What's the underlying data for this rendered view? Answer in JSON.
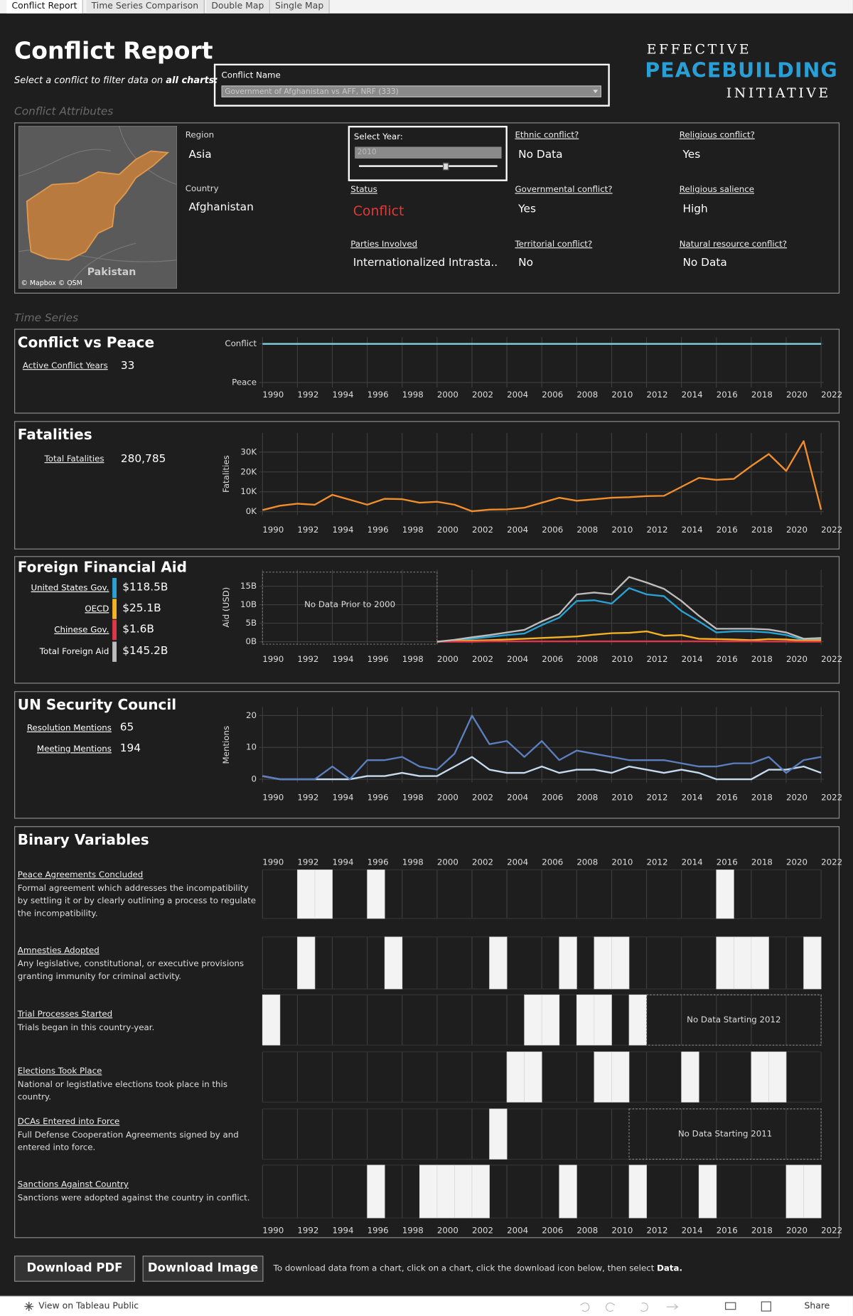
{
  "tabs": [
    "Conflict Report",
    "Time Series Comparison",
    "Double Map",
    "Single Map"
  ],
  "header": {
    "title": "Conflict Report",
    "subtitle": "Select a conflict to filter data on",
    "subtitle_emphasis": "all charts:",
    "filter_label": "Conflict Name",
    "filter_value": "Government of Afghanistan vs AFF, NRF (333)",
    "logo": [
      "EFFECTIVE",
      "PEACEBUILDING",
      "INITIATIVE"
    ]
  },
  "attributes": {
    "section_title": "Conflict Attributes",
    "map_label": "Pakistan",
    "map_credits": "© Mapbox © OSM",
    "region_label": "Region",
    "region": "Asia",
    "country_label": "Country",
    "country": "Afghanistan",
    "year_label": "Select Year:",
    "year": "2010",
    "fields": [
      {
        "label": "Ethnic conflict?",
        "value": "No Data"
      },
      {
        "label": "Religious conflict?",
        "value": "Yes"
      },
      {
        "label": "Status",
        "value": "Conflict"
      },
      {
        "label": "Governmental conflict?",
        "value": "Yes"
      },
      {
        "label": "Religious salience",
        "value": "High"
      },
      {
        "label": "Parties Involved",
        "value": "Internationalized Intrasta.."
      },
      {
        "label": "Territorial conflict?",
        "value": "No"
      },
      {
        "label": "Natural resource conflict?",
        "value": "No Data"
      }
    ]
  },
  "time_series_title": "Time Series",
  "chart_data": [
    {
      "type": "line",
      "title": "Conflict vs Peace",
      "stat_label": "Active Conflict Years",
      "stat_value": 33,
      "x": [
        1990,
        1991,
        1992,
        1993,
        1994,
        1995,
        1996,
        1997,
        1998,
        1999,
        2000,
        2001,
        2002,
        2003,
        2004,
        2005,
        2006,
        2007,
        2008,
        2009,
        2010,
        2011,
        2012,
        2013,
        2014,
        2015,
        2016,
        2017,
        2018,
        2019,
        2020,
        2021,
        2022
      ],
      "values": [
        1,
        1,
        1,
        1,
        1,
        1,
        1,
        1,
        1,
        1,
        1,
        1,
        1,
        1,
        1,
        1,
        1,
        1,
        1,
        1,
        1,
        1,
        1,
        1,
        1,
        1,
        1,
        1,
        1,
        1,
        1,
        1,
        1
      ],
      "color": "#7fd3df",
      "xlim": [
        1990,
        2022
      ],
      "xticks": [
        1990,
        1992,
        1994,
        1996,
        1998,
        2000,
        2002,
        2004,
        2006,
        2008,
        2010,
        2012,
        2014,
        2016,
        2018,
        2020,
        2022
      ],
      "ylim": [
        0,
        1
      ],
      "yticks": [
        {
          "value": 0,
          "label": "Peace"
        },
        {
          "value": 1,
          "label": "Conflict"
        }
      ],
      "grid": true
    },
    {
      "type": "line",
      "title": "Fatalities",
      "stat_label": "Total Fatalities",
      "stat_value": "280,785",
      "y_label": "Fatalities",
      "x": [
        1990,
        1991,
        1992,
        1993,
        1994,
        1995,
        1996,
        1997,
        1998,
        1999,
        2000,
        2001,
        2002,
        2003,
        2004,
        2005,
        2006,
        2007,
        2008,
        2009,
        2010,
        2011,
        2012,
        2013,
        2014,
        2015,
        2016,
        2017,
        2018,
        2019,
        2020,
        2021,
        2022
      ],
      "values": [
        800,
        3000,
        4000,
        3500,
        8500,
        6000,
        3500,
        6500,
        6300,
        4500,
        5000,
        3500,
        200,
        1000,
        1200,
        2000,
        4500,
        7000,
        5500,
        6200,
        7000,
        7300,
        7800,
        8000,
        12500,
        17000,
        16000,
        16500,
        23000,
        29000,
        20500,
        35500,
        1000
      ],
      "color": "#f28e2b",
      "xlim": [
        1990,
        2022
      ],
      "xticks": [
        1990,
        1992,
        1994,
        1996,
        1998,
        2000,
        2002,
        2004,
        2006,
        2008,
        2010,
        2012,
        2014,
        2016,
        2018,
        2020,
        2022
      ],
      "ylim": [
        0,
        38000
      ],
      "yticks": [
        {
          "value": 0,
          "label": "0K"
        },
        {
          "value": 10000,
          "label": "10K"
        },
        {
          "value": 20000,
          "label": "20K"
        },
        {
          "value": 30000,
          "label": "30K"
        }
      ],
      "grid": true
    },
    {
      "type": "line",
      "title": "Foreign Financial Aid",
      "y_label": "Aid (USD)",
      "annotation": "No Data Prior to 2000",
      "x": [
        2000,
        2001,
        2002,
        2003,
        2004,
        2005,
        2006,
        2007,
        2008,
        2009,
        2010,
        2011,
        2012,
        2013,
        2014,
        2015,
        2016,
        2017,
        2018,
        2019,
        2020,
        2021,
        2022
      ],
      "series": [
        {
          "name": "United States Gov.",
          "total": "$118.5B",
          "color": "#2aa3d4",
          "values": [
            0,
            0.3,
            0.8,
            1.3,
            1.8,
            2.2,
            4.5,
            6.5,
            11,
            11.2,
            10.3,
            14.5,
            12.8,
            12.3,
            8.3,
            5.5,
            2.5,
            2.8,
            2.8,
            2.5,
            1.8,
            0.5,
            0.6
          ]
        },
        {
          "name": "OECD",
          "total": "$25.1B",
          "color": "#f5b324",
          "values": [
            0,
            0.2,
            0.3,
            0.4,
            0.6,
            0.8,
            1,
            1.2,
            1.4,
            1.9,
            2.3,
            2.4,
            2.8,
            1.6,
            1.8,
            0.8,
            0.7,
            0.6,
            0.4,
            0.7,
            0.6,
            0.3,
            0.4
          ]
        },
        {
          "name": "Chinese Gov.",
          "total": "$1.6B",
          "color": "#e0364a",
          "values": [
            0,
            0,
            0,
            0.1,
            0.1,
            0.1,
            0.1,
            0.1,
            0.1,
            0.1,
            0.1,
            0.1,
            0.1,
            0.1,
            0.1,
            0.1,
            0.1,
            0.1,
            0.1,
            0.05,
            0.05,
            0,
            0
          ]
        },
        {
          "name": "Total Foreign Aid",
          "total": "$145.2B",
          "color": "#bdbdbd",
          "values": [
            0,
            0.5,
            1.2,
            1.8,
            2.5,
            3.2,
            5.5,
            7.5,
            12.8,
            13.3,
            12.8,
            17.5,
            16,
            14.3,
            11,
            7,
            3.5,
            3.5,
            3.5,
            3.3,
            2.5,
            0.8,
            1
          ]
        }
      ],
      "xlim": [
        1990,
        2022
      ],
      "xticks": [
        1990,
        1992,
        1994,
        1996,
        1998,
        2000,
        2002,
        2004,
        2006,
        2008,
        2010,
        2012,
        2014,
        2016,
        2018,
        2020,
        2022
      ],
      "ylim": [
        0,
        18.6
      ],
      "yticks": [
        {
          "value": 0,
          "label": "0B"
        },
        {
          "value": 5,
          "label": "5B"
        },
        {
          "value": 10,
          "label": "10B"
        },
        {
          "value": 15,
          "label": "15B"
        }
      ],
      "grid": true
    },
    {
      "type": "line",
      "title": "UN Security Council",
      "y_label": "Mentions",
      "x": [
        1990,
        1991,
        1992,
        1993,
        1994,
        1995,
        1996,
        1997,
        1998,
        1999,
        2000,
        2001,
        2002,
        2003,
        2004,
        2005,
        2006,
        2007,
        2008,
        2009,
        2010,
        2011,
        2012,
        2013,
        2014,
        2015,
        2016,
        2017,
        2018,
        2019,
        2020,
        2021,
        2022
      ],
      "series": [
        {
          "name": "Resolution Mentions",
          "total": 65,
          "color": "#c6dbef",
          "values": [
            1,
            0,
            0,
            0,
            0,
            0,
            1,
            1,
            2,
            1,
            1,
            4,
            7,
            3,
            2,
            2,
            4,
            2,
            3,
            3,
            2,
            4,
            3,
            2,
            3,
            2,
            0,
            0,
            0,
            3,
            3,
            4,
            2
          ]
        },
        {
          "name": "Meeting Mentions",
          "total": 194,
          "color": "#5b7fbf",
          "values": [
            1,
            0,
            0,
            0,
            4,
            0,
            6,
            6,
            7,
            4,
            3,
            8,
            20,
            11,
            12,
            7,
            12,
            6,
            9,
            8,
            7,
            6,
            6,
            6,
            5,
            4,
            4,
            5,
            5,
            7,
            2,
            6,
            7
          ]
        }
      ],
      "xlim": [
        1990,
        2022
      ],
      "xticks": [
        1990,
        1992,
        1994,
        1996,
        1998,
        2000,
        2002,
        2004,
        2006,
        2008,
        2010,
        2012,
        2014,
        2016,
        2018,
        2020,
        2022
      ],
      "ylim": [
        0,
        21.6
      ],
      "yticks": [
        0,
        10,
        20
      ],
      "grid": true
    },
    {
      "type": "heatmap",
      "title": "Binary Variables",
      "x": [
        1990,
        1991,
        1992,
        1993,
        1994,
        1995,
        1996,
        1997,
        1998,
        1999,
        2000,
        2001,
        2002,
        2003,
        2004,
        2005,
        2006,
        2007,
        2008,
        2009,
        2010,
        2011,
        2012,
        2013,
        2014,
        2015,
        2016,
        2017,
        2018,
        2019,
        2020,
        2021
      ],
      "xlim": [
        1990,
        2022
      ],
      "xticks": [
        1990,
        1992,
        1994,
        1996,
        1998,
        2000,
        2002,
        2004,
        2006,
        2008,
        2010,
        2012,
        2014,
        2016,
        2018,
        2020,
        2022
      ],
      "rows": [
        {
          "name": "Peace Agreements Concluded",
          "description": "Formal agreement which addresses the incompatibility by settling it or by clearly outlining a process to regulate the incompatibility.",
          "values": [
            0,
            0,
            1,
            1,
            0,
            0,
            1,
            0,
            0,
            0,
            0,
            0,
            0,
            0,
            0,
            0,
            0,
            0,
            0,
            0,
            0,
            0,
            0,
            0,
            0,
            0,
            1,
            0,
            0,
            0,
            0,
            0
          ]
        },
        {
          "name": "Amnesties Adopted",
          "description": "Any legislative, constitutional, or executive provisions granting immunity for criminal activity.",
          "values": [
            0,
            0,
            1,
            0,
            0,
            0,
            0,
            1,
            0,
            0,
            0,
            0,
            0,
            1,
            0,
            0,
            0,
            1,
            0,
            1,
            1,
            0,
            0,
            0,
            0,
            0,
            1,
            1,
            1,
            0,
            0,
            1
          ]
        },
        {
          "name": "Trial Processes Started",
          "description": "Trials began in this country-year.",
          "annotation": "No Data Starting 2012",
          "values": [
            1,
            0,
            0,
            0,
            0,
            0,
            0,
            0,
            0,
            0,
            0,
            0,
            0,
            0,
            0,
            1,
            1,
            0,
            1,
            1,
            0,
            1,
            null,
            null,
            null,
            null,
            null,
            null,
            null,
            null,
            null,
            null
          ]
        },
        {
          "name": "Elections Took Place",
          "description": "National or legistlative elections took place in this country.",
          "values": [
            0,
            0,
            0,
            0,
            0,
            0,
            0,
            0,
            0,
            0,
            0,
            0,
            0,
            0,
            1,
            1,
            0,
            0,
            0,
            1,
            1,
            0,
            0,
            0,
            1,
            0,
            0,
            0,
            1,
            1,
            0,
            0
          ]
        },
        {
          "name": "DCAs Entered into Force",
          "description": "Full Defense Cooperation Agreements signed by and entered into force.",
          "annotation": "No Data Starting 2011",
          "values": [
            0,
            0,
            0,
            0,
            0,
            0,
            0,
            0,
            0,
            0,
            0,
            0,
            0,
            1,
            0,
            0,
            0,
            0,
            0,
            0,
            0,
            null,
            null,
            null,
            null,
            null,
            null,
            null,
            null,
            null,
            null,
            null
          ]
        },
        {
          "name": "Sanctions Against Country",
          "description": "Sanctions were adopted against the country in conflict.",
          "values": [
            0,
            0,
            0,
            0,
            0,
            0,
            1,
            0,
            0,
            1,
            1,
            1,
            1,
            0,
            0,
            0,
            0,
            1,
            0,
            0,
            0,
            1,
            0,
            0,
            0,
            1,
            0,
            0,
            0,
            0,
            1,
            1
          ]
        }
      ]
    }
  ],
  "footer": {
    "buttons": [
      "Download PDF",
      "Download Image"
    ],
    "note": "To download data from a chart, click on a chart, click the download icon below, then select",
    "note_emphasis": "Data.",
    "tableau_link": "View on Tableau Public",
    "share": "Share"
  }
}
